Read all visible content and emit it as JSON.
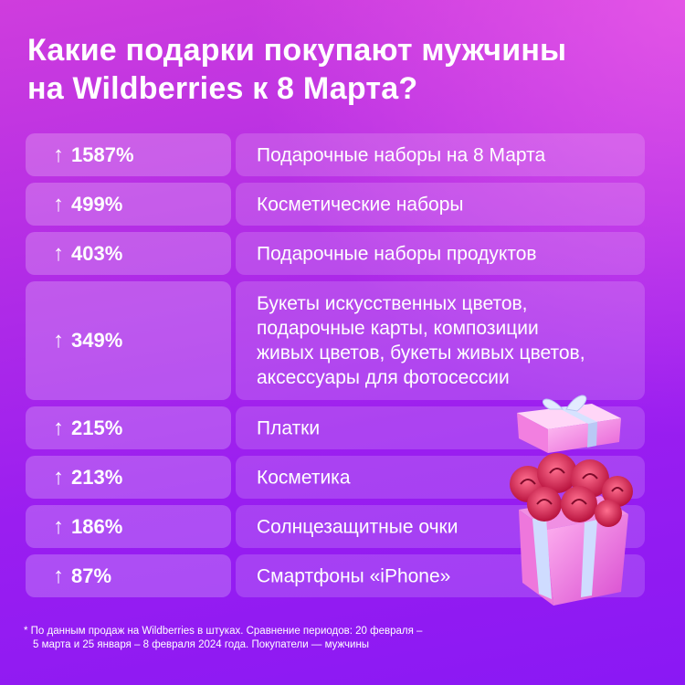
{
  "title": {
    "line1": "Какие подарки покупают мужчины",
    "line2": "на Wildberries к 8 Марта?"
  },
  "rows": [
    {
      "arrow": "↑",
      "value": "1587%",
      "desc": [
        "Подарочные наборы на 8 Марта"
      ]
    },
    {
      "arrow": "↑",
      "value": "499%",
      "desc": [
        "Косметические наборы"
      ]
    },
    {
      "arrow": "↑",
      "value": "403%",
      "desc": [
        "Подарочные наборы продуктов"
      ]
    },
    {
      "arrow": "↑",
      "value": "349%",
      "desc": [
        "Букеты искусственных цветов,",
        "подарочные карты, композиции",
        "живых цветов, букеты живых цветов,",
        "аксессуары для фотосессии"
      ]
    },
    {
      "arrow": "↑",
      "value": "215%",
      "desc": [
        "Платки"
      ]
    },
    {
      "arrow": "↑",
      "value": "213%",
      "desc": [
        "Косметика"
      ]
    },
    {
      "arrow": "↑",
      "value": "186%",
      "desc": [
        "Солнцезащитные очки"
      ]
    },
    {
      "arrow": "↑",
      "value": "87%",
      "desc": [
        "Смартфоны «iPhone»"
      ]
    }
  ],
  "footnote": {
    "line1": "* По данным продаж на Wildberries в штуках. Сравнение периодов: 20 февраля –",
    "line2": "5 марта и 25 января – 8 февраля 2024 года. Покупатели — мужчины"
  },
  "colors": {
    "background_top": "#cf3ddd",
    "background_bottom": "#8a18f4",
    "gift_box": "#ff8fe6",
    "ribbon": "#c9d8ff",
    "roses": "#e8325f"
  }
}
